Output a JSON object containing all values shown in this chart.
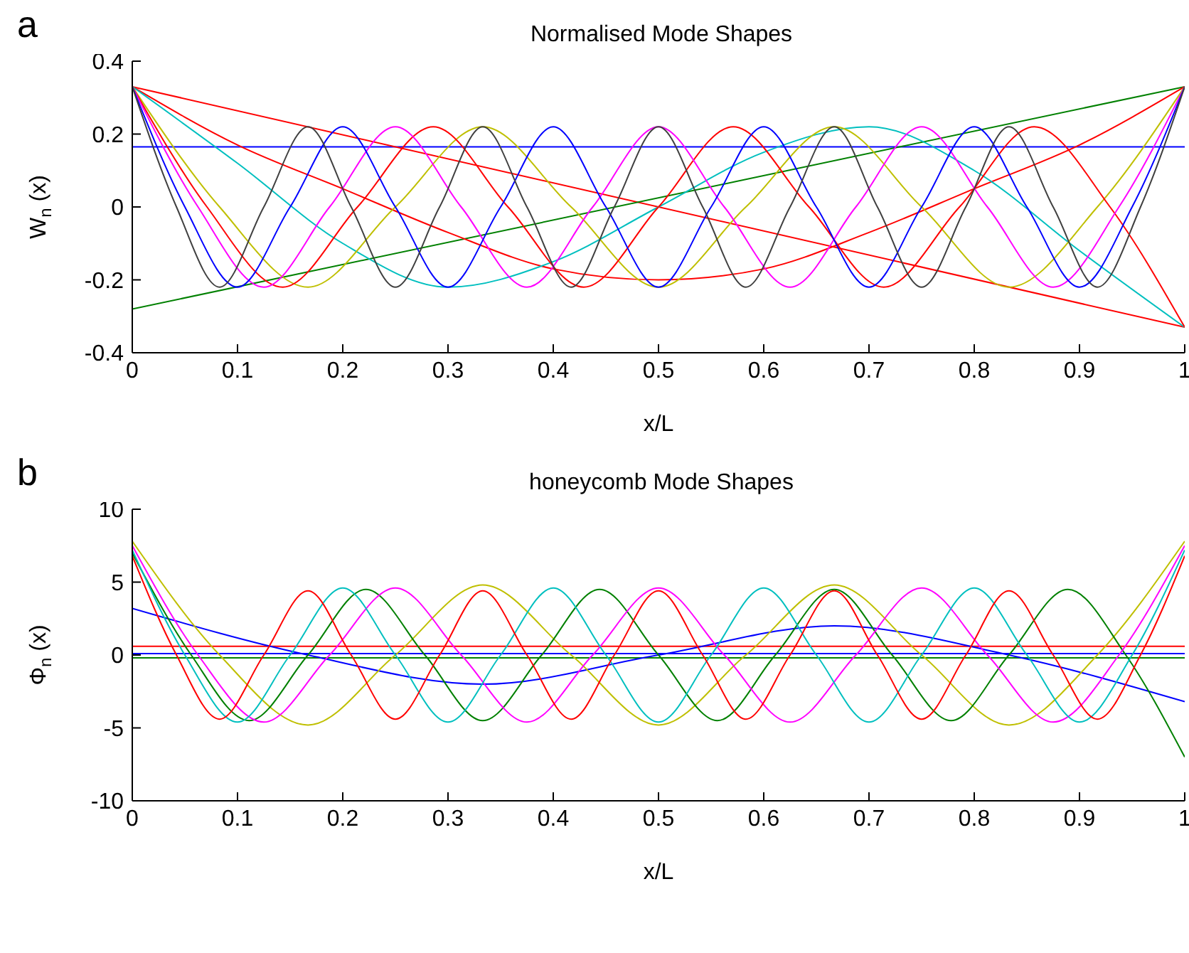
{
  "chart_data": [
    {
      "type": "line",
      "title": "Normalised Mode Shapes",
      "xlabel": "x/L",
      "ylabel": "W$_{n}$ (x)",
      "annotations": [
        "a"
      ],
      "xlim": [
        0,
        1
      ],
      "ylim": [
        -0.4,
        0.4
      ],
      "xticks": [
        0,
        0.1,
        0.2,
        0.3,
        0.4,
        0.5,
        0.6,
        0.7,
        0.8,
        0.9,
        1
      ],
      "yticks": [
        -0.4,
        -0.2,
        0,
        0.2,
        0.4
      ],
      "grid": false,
      "marker": "none",
      "line_style": "solid",
      "series": [
        {
          "color": "#0000ff",
          "x": [
            0,
            1
          ],
          "values": [
            0.165,
            0.165
          ]
        },
        {
          "color": "#ff0000",
          "x": [
            0,
            1
          ],
          "values": [
            0.33,
            -0.33
          ]
        },
        {
          "color": "#008000",
          "x": [
            0,
            1
          ],
          "values": [
            -0.28,
            0.33
          ]
        },
        {
          "color": "#ff0000",
          "x": [
            0,
            0.1,
            0.2,
            0.3,
            0.4,
            0.5,
            0.6,
            0.7,
            0.8,
            0.9,
            1
          ],
          "values": [
            0.33,
            0.17,
            0.05,
            -0.07,
            -0.17,
            -0.2,
            -0.17,
            -0.07,
            0.05,
            0.17,
            0.33
          ]
        },
        {
          "color": "#00bfbf",
          "x": [
            0,
            0.1,
            0.2,
            0.3,
            0.4,
            0.5,
            0.6,
            0.7,
            0.8,
            0.9,
            1
          ],
          "values": [
            0.33,
            0.12,
            -0.1,
            -0.22,
            -0.15,
            0,
            0.15,
            0.22,
            0.1,
            -0.12,
            -0.33
          ]
        },
        {
          "color": "#bfbf00",
          "x": [
            0,
            0.083,
            0.167,
            0.25,
            0.333,
            0.417,
            0.5,
            0.583,
            0.667,
            0.75,
            0.833,
            0.917,
            1
          ],
          "values": [
            0.33,
            0,
            -0.22,
            0,
            0.22,
            0,
            -0.22,
            0,
            0.22,
            0,
            -0.22,
            0,
            0.33
          ]
        },
        {
          "color": "#ff0000",
          "x": [
            0,
            0.071,
            0.143,
            0.214,
            0.286,
            0.357,
            0.429,
            0.5,
            0.571,
            0.643,
            0.714,
            0.786,
            0.857,
            0.929,
            1
          ],
          "values": [
            0.33,
            0,
            -0.22,
            0,
            0.22,
            0,
            -0.22,
            0,
            0.22,
            0,
            -0.22,
            0,
            0.22,
            0,
            -0.33
          ]
        },
        {
          "color": "#ff00ff",
          "x": [
            0,
            0.0625,
            0.125,
            0.1875,
            0.25,
            0.3125,
            0.375,
            0.4375,
            0.5,
            0.5625,
            0.625,
            0.6875,
            0.75,
            0.8125,
            0.875,
            0.9375,
            1
          ],
          "values": [
            0.33,
            0,
            -0.22,
            0,
            0.22,
            0,
            -0.22,
            0,
            0.22,
            0,
            -0.22,
            0,
            0.22,
            0,
            -0.22,
            0,
            0.33
          ]
        },
        {
          "color": "#0000ff",
          "x": [
            0,
            0.05,
            0.1,
            0.15,
            0.2,
            0.25,
            0.3,
            0.35,
            0.4,
            0.45,
            0.5,
            0.55,
            0.6,
            0.65,
            0.7,
            0.75,
            0.8,
            0.85,
            0.9,
            0.95,
            1
          ],
          "values": [
            0.33,
            0,
            -0.22,
            0,
            0.22,
            0,
            -0.22,
            0,
            0.22,
            0,
            -0.22,
            0,
            0.22,
            0,
            -0.22,
            0,
            0.22,
            0,
            -0.22,
            0,
            0.33
          ]
        },
        {
          "color": "#404040",
          "x": [
            0,
            0.042,
            0.083,
            0.125,
            0.167,
            0.208,
            0.25,
            0.292,
            0.333,
            0.375,
            0.417,
            0.458,
            0.5,
            0.542,
            0.583,
            0.625,
            0.667,
            0.708,
            0.75,
            0.792,
            0.833,
            0.875,
            0.917,
            0.958,
            1
          ],
          "values": [
            0.33,
            0,
            -0.22,
            0,
            0.22,
            0,
            -0.22,
            0,
            0.22,
            0,
            -0.22,
            0,
            0.22,
            0,
            -0.22,
            0,
            0.22,
            0,
            -0.22,
            0,
            0.22,
            0,
            -0.22,
            0,
            0.33
          ]
        }
      ]
    },
    {
      "type": "line",
      "title": "honeycomb Mode Shapes",
      "xlabel": "x/L",
      "ylabel": "Φ$_{n}$ (x)",
      "annotations": [
        "b"
      ],
      "xlim": [
        0,
        1
      ],
      "ylim": [
        -10,
        10
      ],
      "xticks": [
        0,
        0.1,
        0.2,
        0.3,
        0.4,
        0.5,
        0.6,
        0.7,
        0.8,
        0.9,
        1
      ],
      "yticks": [
        -10,
        -5,
        0,
        5,
        10
      ],
      "grid": false,
      "marker": "none",
      "line_style": "solid",
      "series": [
        {
          "color": "#ff0000",
          "x": [
            0,
            1
          ],
          "values": [
            0.6,
            0.6
          ]
        },
        {
          "color": "#0000ff",
          "x": [
            0,
            1
          ],
          "values": [
            0.1,
            0.1
          ]
        },
        {
          "color": "#008000",
          "x": [
            0,
            1
          ],
          "values": [
            -0.2,
            -0.2
          ]
        },
        {
          "color": "#0000ff",
          "x": [
            0,
            0.167,
            0.333,
            0.5,
            0.667,
            0.833,
            1
          ],
          "values": [
            3.2,
            0,
            -2,
            0,
            2,
            0,
            -3.2
          ]
        },
        {
          "color": "#bfbf00",
          "x": [
            0,
            0.083,
            0.167,
            0.25,
            0.333,
            0.417,
            0.5,
            0.583,
            0.667,
            0.75,
            0.833,
            0.917,
            1
          ],
          "values": [
            7.8,
            0,
            -4.8,
            0,
            4.8,
            0,
            -4.8,
            0,
            4.8,
            0,
            -4.8,
            0,
            7.8
          ]
        },
        {
          "color": "#008000",
          "x": [
            0,
            0.056,
            0.111,
            0.167,
            0.222,
            0.278,
            0.333,
            0.389,
            0.444,
            0.5,
            0.556,
            0.611,
            0.667,
            0.722,
            0.778,
            0.833,
            0.889,
            0.944,
            1
          ],
          "values": [
            7,
            0,
            -4.5,
            0,
            4.5,
            0,
            -4.5,
            0,
            4.5,
            0,
            -4.5,
            0,
            4.5,
            0,
            -4.5,
            0,
            4.5,
            0,
            -7
          ]
        },
        {
          "color": "#ff00ff",
          "x": [
            0,
            0.0625,
            0.125,
            0.1875,
            0.25,
            0.3125,
            0.375,
            0.4375,
            0.5,
            0.5625,
            0.625,
            0.6875,
            0.75,
            0.8125,
            0.875,
            0.9375,
            1
          ],
          "values": [
            7.5,
            0,
            -4.6,
            0,
            4.6,
            0,
            -4.6,
            0,
            4.6,
            0,
            -4.6,
            0,
            4.6,
            0,
            -4.6,
            0,
            7.5
          ]
        },
        {
          "color": "#00bfbf",
          "x": [
            0,
            0.05,
            0.1,
            0.15,
            0.2,
            0.25,
            0.3,
            0.35,
            0.4,
            0.45,
            0.5,
            0.55,
            0.6,
            0.65,
            0.7,
            0.75,
            0.8,
            0.85,
            0.9,
            0.95,
            1
          ],
          "values": [
            7.2,
            0,
            -4.6,
            0,
            4.6,
            0,
            -4.6,
            0,
            4.6,
            0,
            -4.6,
            0,
            4.6,
            0,
            -4.6,
            0,
            4.6,
            0,
            -4.6,
            0,
            7.2
          ]
        },
        {
          "color": "#ff0000",
          "x": [
            0,
            0.042,
            0.083,
            0.125,
            0.167,
            0.208,
            0.25,
            0.292,
            0.333,
            0.375,
            0.417,
            0.458,
            0.5,
            0.542,
            0.583,
            0.625,
            0.667,
            0.708,
            0.75,
            0.792,
            0.833,
            0.875,
            0.917,
            0.958,
            1
          ],
          "values": [
            6.8,
            0,
            -4.4,
            0,
            4.4,
            0,
            -4.4,
            0,
            4.4,
            0,
            -4.4,
            0,
            4.4,
            0,
            -4.4,
            0,
            4.4,
            0,
            -4.4,
            0,
            4.4,
            0,
            -4.4,
            0,
            6.8
          ]
        }
      ]
    }
  ]
}
